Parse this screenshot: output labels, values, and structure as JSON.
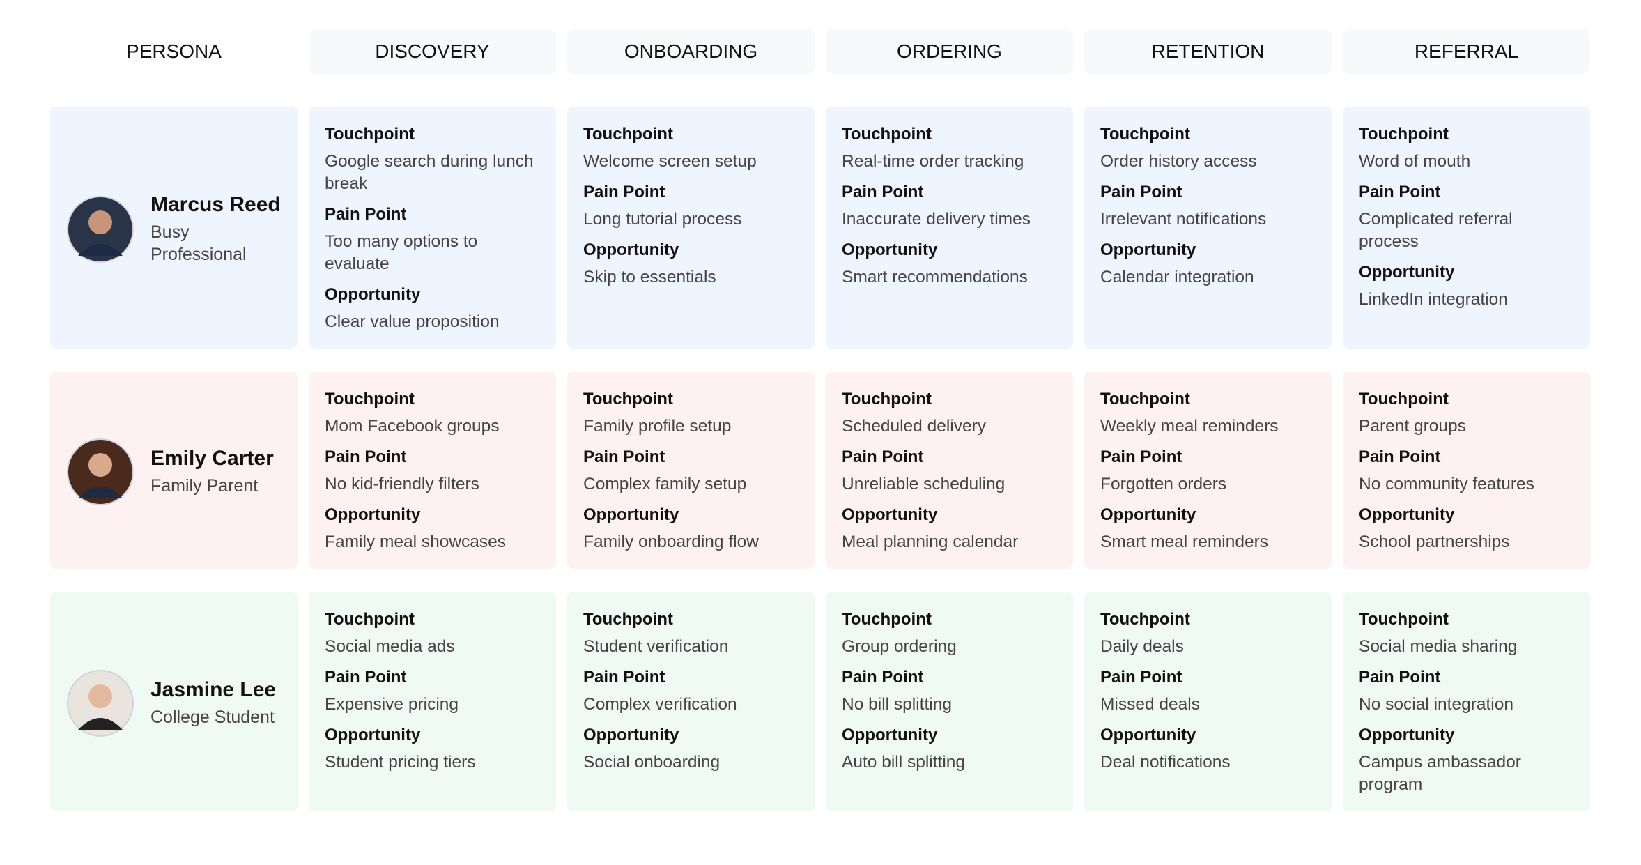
{
  "columns": [
    "PERSONA",
    "DISCOVERY",
    "ONBOARDING",
    "ORDERING",
    "RETENTION",
    "REFERRAL"
  ],
  "field_labels": {
    "touchpoint": "Touchpoint",
    "pain_point": "Pain Point",
    "opportunity": "Opportunity"
  },
  "personas": [
    {
      "name": "Marcus Reed",
      "role": "Busy Professional",
      "stages": [
        {
          "touchpoint": "Google search during lunch break",
          "pain_point": "Too many options to evaluate",
          "opportunity": "Clear value proposition"
        },
        {
          "touchpoint": "Welcome screen setup",
          "pain_point": "Long tutorial process",
          "opportunity": "Skip to essentials"
        },
        {
          "touchpoint": "Real-time order tracking",
          "pain_point": "Inaccurate delivery times",
          "opportunity": "Smart recommendations"
        },
        {
          "touchpoint": "Order history access",
          "pain_point": "Irrelevant notifications",
          "opportunity": "Calendar integration"
        },
        {
          "touchpoint": "Word of mouth",
          "pain_point": "Complicated referral process",
          "opportunity": "LinkedIn integration"
        }
      ]
    },
    {
      "name": "Emily Carter",
      "role": "Family Parent",
      "stages": [
        {
          "touchpoint": "Mom Facebook groups",
          "pain_point": "No kid-friendly filters",
          "opportunity": "Family meal showcases"
        },
        {
          "touchpoint": "Family profile setup",
          "pain_point": "Complex family setup",
          "opportunity": "Family onboarding flow"
        },
        {
          "touchpoint": "Scheduled delivery",
          "pain_point": "Unreliable scheduling",
          "opportunity": "Meal planning calendar"
        },
        {
          "touchpoint": "Weekly meal reminders",
          "pain_point": "Forgotten orders",
          "opportunity": "Smart meal reminders"
        },
        {
          "touchpoint": "Parent groups",
          "pain_point": "No community features",
          "opportunity": "School partnerships"
        }
      ]
    },
    {
      "name": "Jasmine Lee",
      "role": "College Student",
      "stages": [
        {
          "touchpoint": "Social media ads",
          "pain_point": "Expensive pricing",
          "opportunity": "Student pricing tiers"
        },
        {
          "touchpoint": "Student verification",
          "pain_point": "Complex verification",
          "opportunity": "Social onboarding"
        },
        {
          "touchpoint": "Group ordering",
          "pain_point": "No bill splitting",
          "opportunity": "Auto bill splitting"
        },
        {
          "touchpoint": "Daily deals",
          "pain_point": "Missed deals",
          "opportunity": "Deal notifications"
        },
        {
          "touchpoint": "Social media sharing",
          "pain_point": "No social integration",
          "opportunity": "Campus ambassador program"
        }
      ]
    }
  ]
}
